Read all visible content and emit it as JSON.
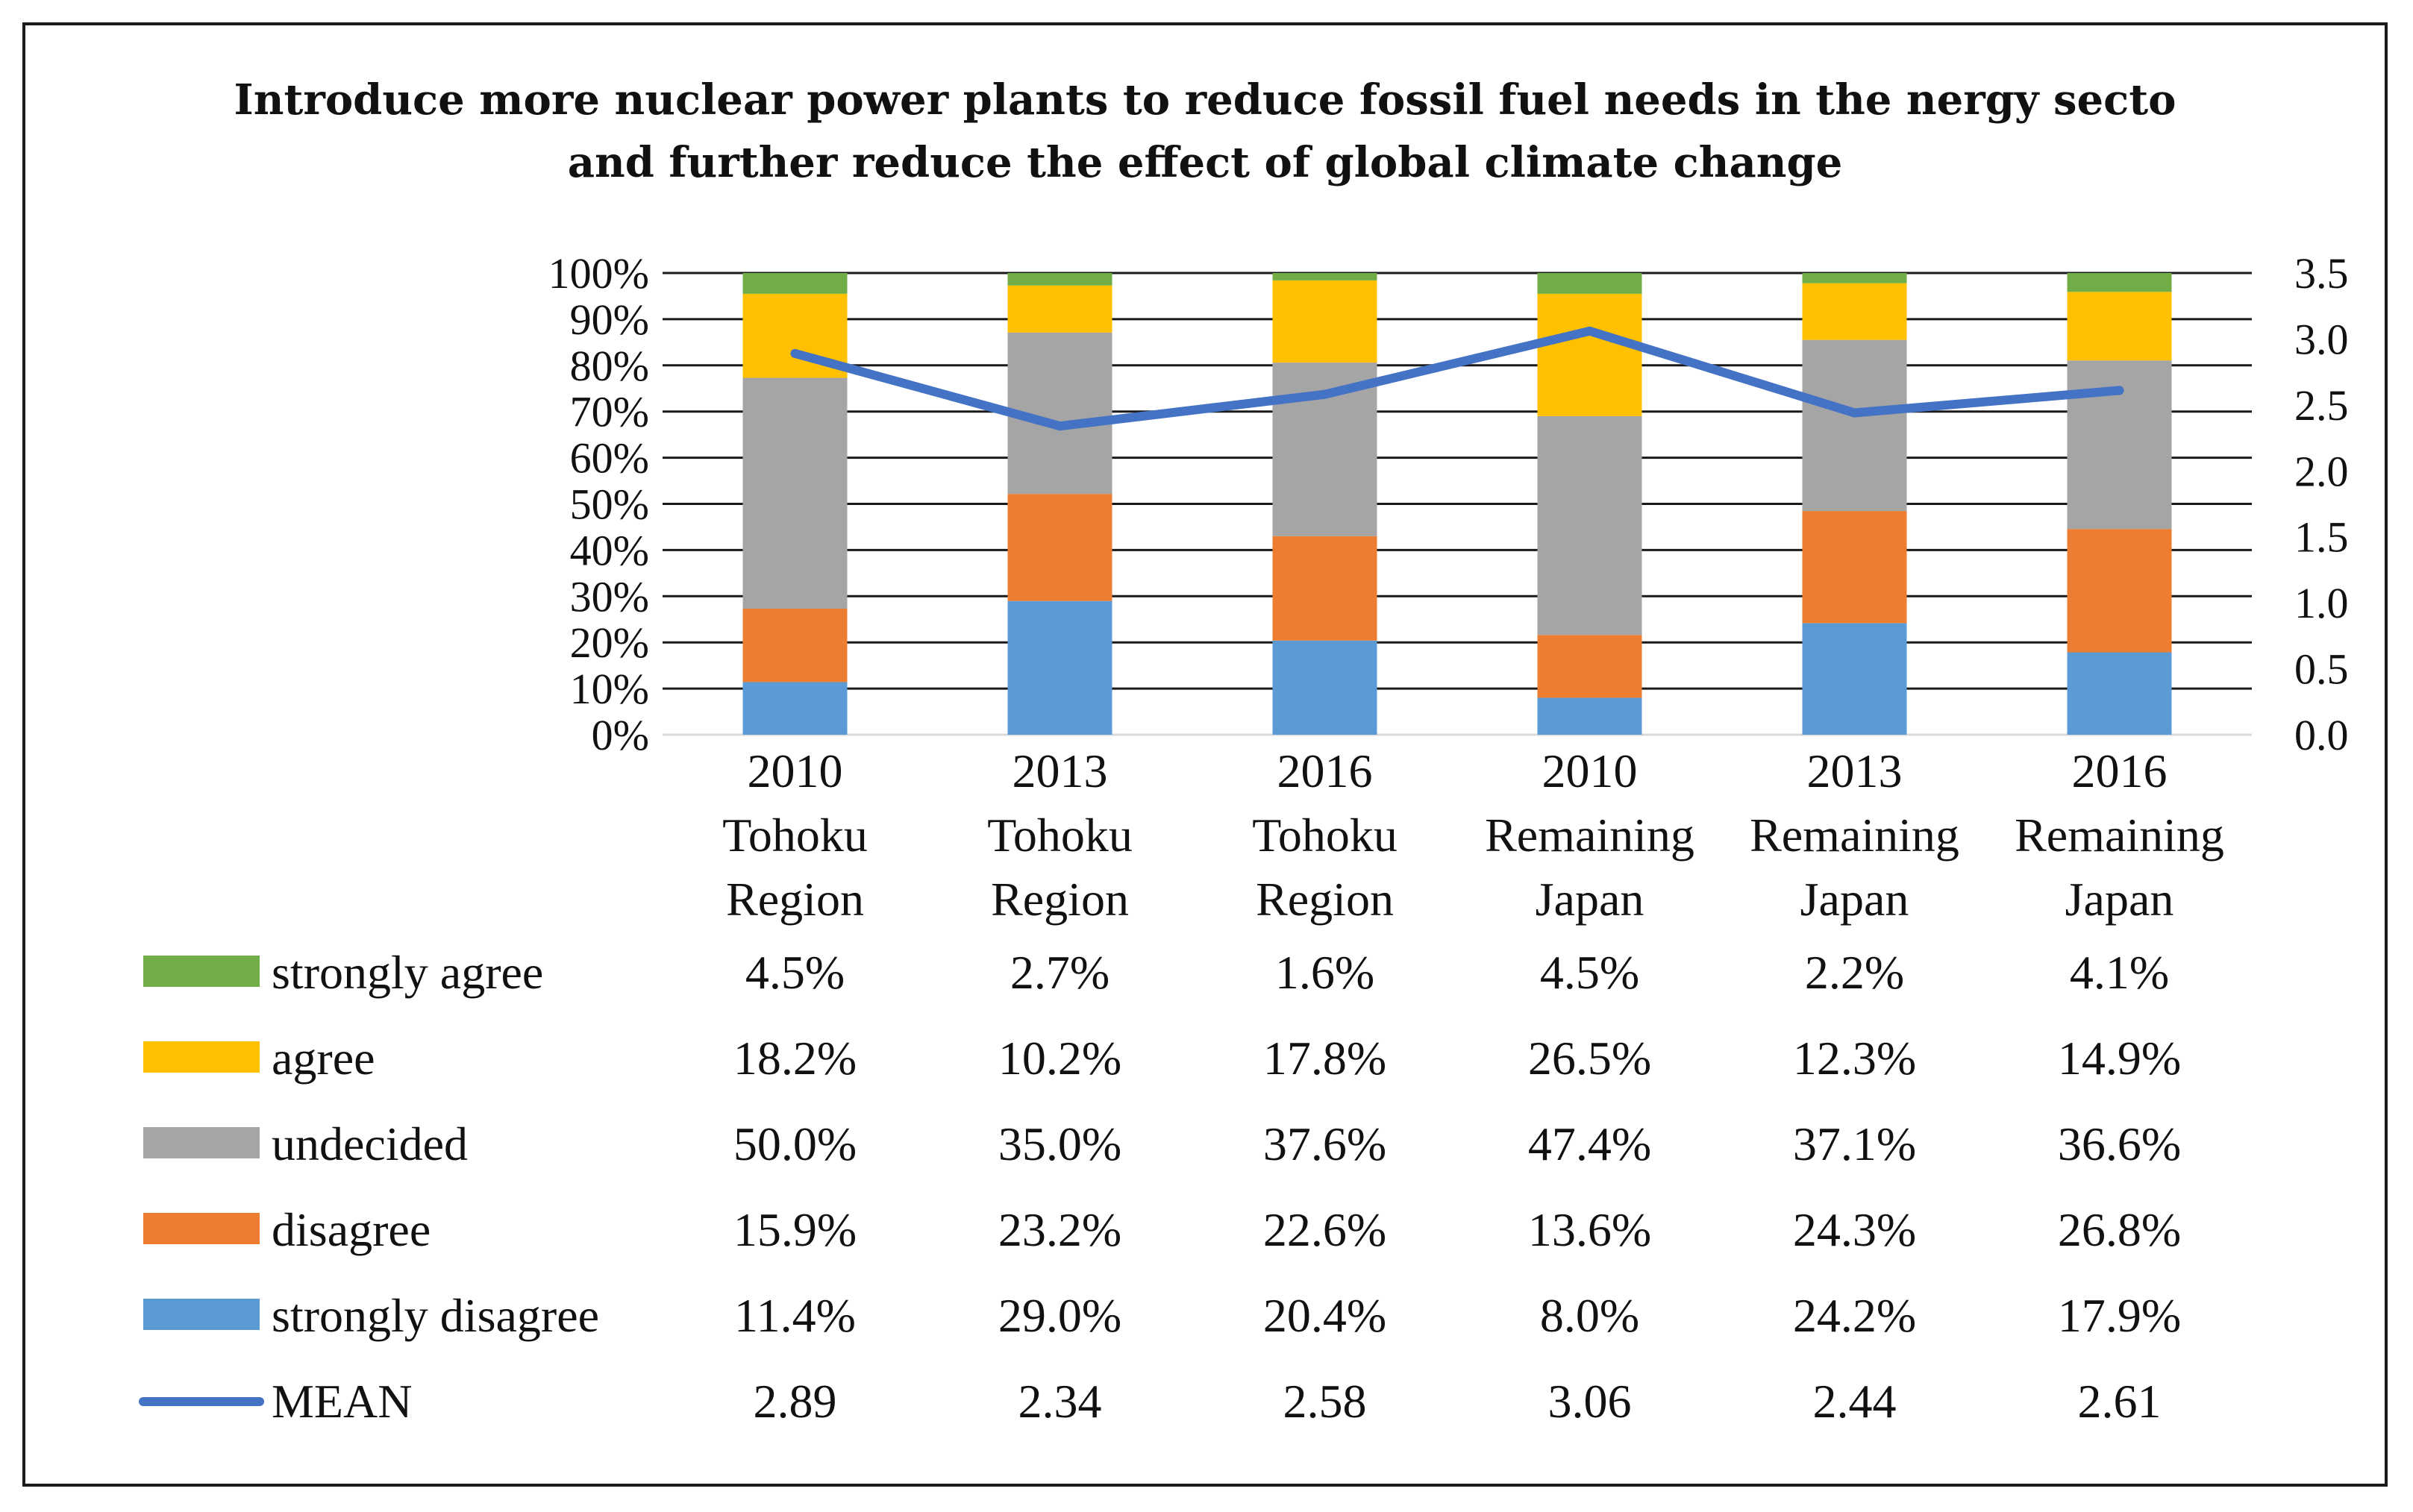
{
  "chart_data": {
    "type": "bar",
    "stacked": true,
    "title": [
      "Introduce more nuclear power plants to reduce fossil fuel needs in the nergy secto",
      "and further reduce the effect of global climate change"
    ],
    "categories": [
      [
        "2010",
        "Tohoku",
        "Region"
      ],
      [
        "2013",
        "Tohoku",
        "Region"
      ],
      [
        "2016",
        "Tohoku",
        "Region"
      ],
      [
        "2010",
        "Remaining",
        "Japan"
      ],
      [
        "2013",
        "Remaining",
        "Japan"
      ],
      [
        "2016",
        "Remaining",
        "Japan"
      ]
    ],
    "left_axis": {
      "ticks": [
        "0%",
        "10%",
        "20%",
        "30%",
        "40%",
        "50%",
        "60%",
        "70%",
        "80%",
        "90%",
        "100%"
      ],
      "ylim": [
        0,
        100
      ]
    },
    "right_axis": {
      "ticks": [
        "0.0",
        "0.5",
        "1.0",
        "1.5",
        "2.0",
        "2.5",
        "3.0",
        "3.5"
      ],
      "ylim": [
        0,
        3.5
      ]
    },
    "series": [
      {
        "name": "strongly agree",
        "color": "#70AD47",
        "values": [
          4.5,
          2.7,
          1.6,
          4.5,
          2.2,
          4.1
        ],
        "labels": [
          "4.5%",
          "2.7%",
          "1.6%",
          "4.5%",
          "2.2%",
          "4.1%"
        ]
      },
      {
        "name": "agree",
        "color": "#FFC000",
        "values": [
          18.2,
          10.2,
          17.8,
          26.5,
          12.3,
          14.9
        ],
        "labels": [
          "18.2%",
          "10.2%",
          "17.8%",
          "26.5%",
          "12.3%",
          "14.9%"
        ]
      },
      {
        "name": "undecided",
        "color": "#A5A5A5",
        "values": [
          50.0,
          35.0,
          37.6,
          47.4,
          37.1,
          36.6
        ],
        "labels": [
          "50.0%",
          "35.0%",
          "37.6%",
          "47.4%",
          "37.1%",
          "36.6%"
        ]
      },
      {
        "name": "disagree",
        "color": "#ED7D31",
        "values": [
          15.9,
          23.2,
          22.6,
          13.6,
          24.3,
          26.8
        ],
        "labels": [
          "15.9%",
          "23.2%",
          "22.6%",
          "13.6%",
          "24.3%",
          "26.8%"
        ]
      },
      {
        "name": "strongly disagree",
        "color": "#5B9BD5",
        "values": [
          11.4,
          29.0,
          20.4,
          8.0,
          24.2,
          17.9
        ],
        "labels": [
          "11.4%",
          "29.0%",
          "20.4%",
          "8.0%",
          "24.2%",
          "17.9%"
        ]
      }
    ],
    "mean": {
      "name": "MEAN",
      "color": "#4472C4",
      "values": [
        2.89,
        2.34,
        2.58,
        3.06,
        2.44,
        2.61
      ],
      "labels": [
        "2.89",
        "2.34",
        "2.58",
        "3.06",
        "2.44",
        "2.61"
      ]
    },
    "grid": true,
    "legend": "data-table-below"
  }
}
